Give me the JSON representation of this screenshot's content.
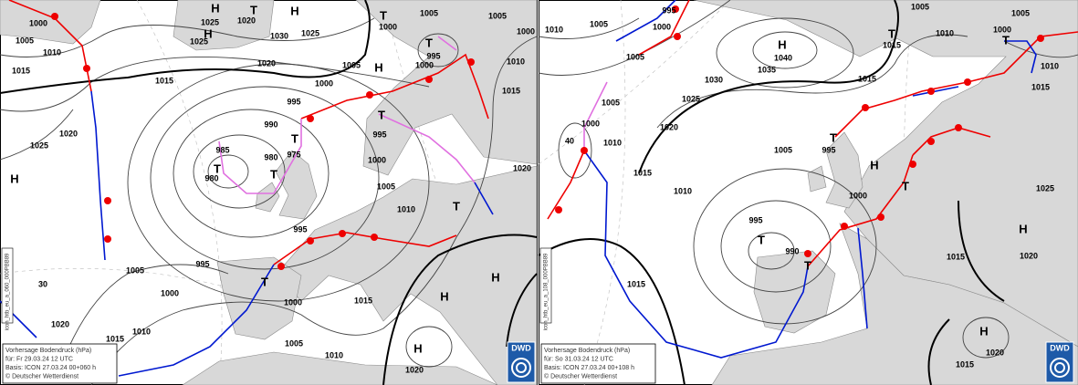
{
  "panels": [
    {
      "labels": [
        "1000",
        "1005",
        "1010",
        "1015",
        "1025",
        "1025",
        "H",
        "H",
        "T",
        "1020",
        "H",
        "1030",
        "1025",
        "T",
        "1000",
        "1005",
        "1005",
        "1000",
        "1020",
        "1005",
        "H",
        "1000",
        "T",
        "995",
        "1010",
        "1015",
        "1000",
        "995",
        "1015",
        "990",
        "T",
        "995",
        "T",
        "985",
        "980",
        "975",
        "1000",
        "T",
        "T",
        "980",
        "1025",
        "1020",
        "H",
        "1005",
        "1020",
        "1010",
        "T",
        "995",
        "995",
        "1005",
        "T",
        "1000",
        "1000",
        "1015",
        "H",
        "H",
        "1020",
        "1010",
        "1015",
        "1005",
        "1010",
        "H",
        "1020",
        "30"
      ],
      "info": {
        "title": "Vorhersage Bodendruck (hPa)",
        "valid": "für:  Fr  29.03.24  12 UTC",
        "base": "Basis:  ICON  27.03.24 00+060 h",
        "copyright": "© Deutscher Wetterdienst"
      },
      "side_code": "icon_htb_eu_a_060_000PBB89",
      "logo": "DWD"
    },
    {
      "labels": [
        "1005",
        "1010",
        "995",
        "1000",
        "1005",
        "H",
        "1040",
        "1035",
        "T",
        "1015",
        "1005",
        "1010",
        "1005",
        "1000",
        "T",
        "1010",
        "1015",
        "1030",
        "1015",
        "1025",
        "1005",
        "1000",
        "1020",
        "1010",
        "1005",
        "T",
        "995",
        "H",
        "1015",
        "1010",
        "1000",
        "T",
        "1025",
        "995",
        "T",
        "990",
        "H",
        "1020",
        "T",
        "1015",
        "1015",
        "H",
        "1020",
        "1015",
        "40"
      ],
      "info": {
        "title": "Vorhersage Bodendruck (hPa)",
        "valid": "für:  So  31.03.24  12 UTC",
        "base": "Basis:  ICON  27.03.24 00+108 h",
        "copyright": "© Deutscher Wetterdienst"
      },
      "side_code": "icon_htb_eu_a_108_000PBB89",
      "logo": "DWD"
    }
  ]
}
